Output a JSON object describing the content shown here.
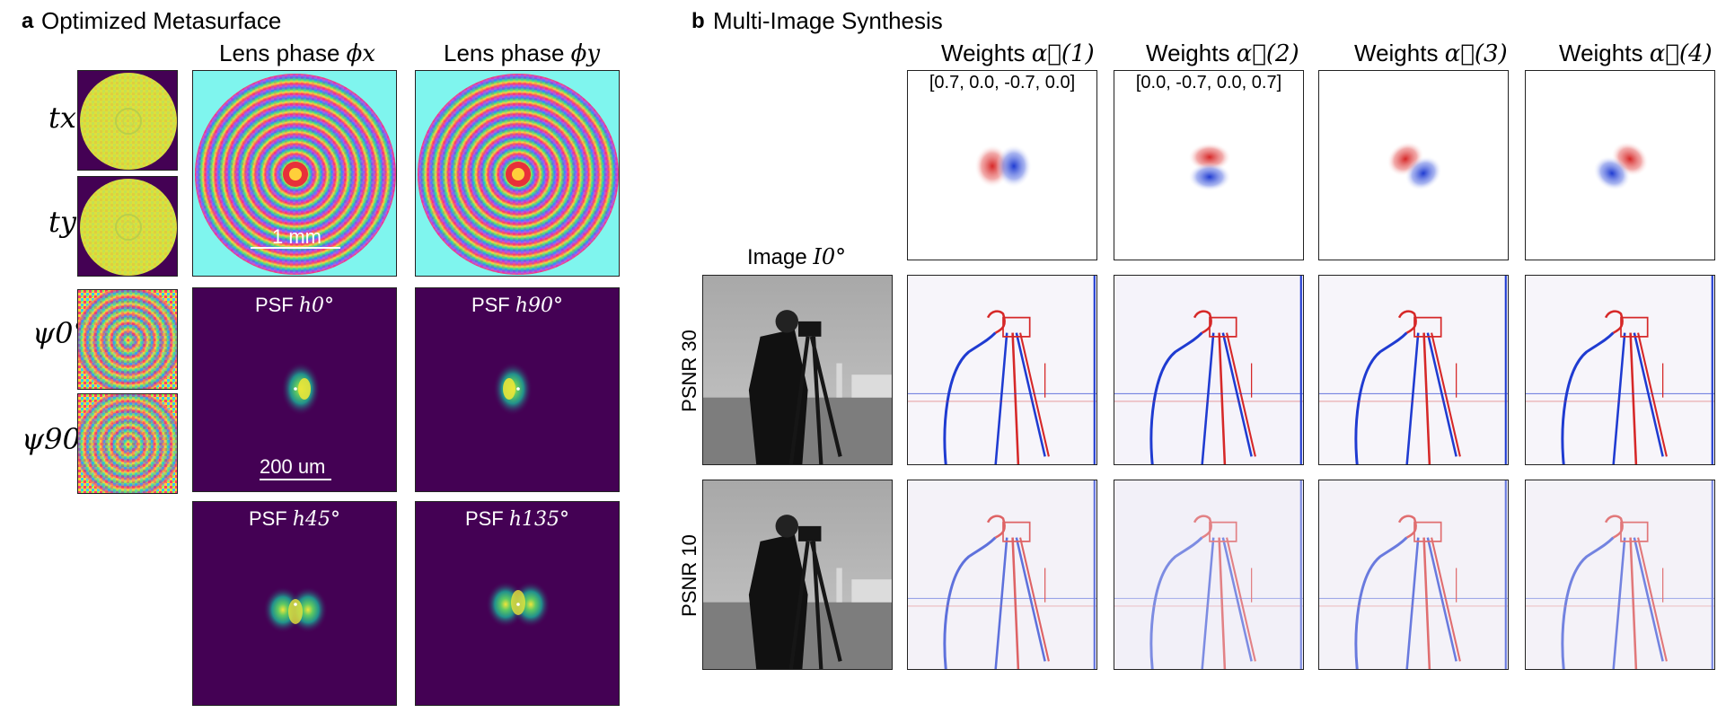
{
  "panel_a": {
    "letter": "a",
    "title": "Optimized Metasurface",
    "col_lens_x": "Lens phase ",
    "col_lens_x_sym": "ϕx",
    "col_lens_y": "Lens phase ",
    "col_lens_y_sym": "ϕy",
    "row_tx": "tx",
    "row_ty": "ty",
    "row_psi0": "ψ0°",
    "row_psi90": "ψ90°",
    "scale_1mm": "1 mm",
    "scale_200um": "200 um",
    "psf_0": "h0°",
    "psf_90": "h90°",
    "psf_45": "h45°",
    "psf_135": "h135°",
    "psf_prefix": "PSF "
  },
  "panel_b": {
    "letter": "b",
    "title": "Multi-Image Synthesis",
    "weights_prefix": "Weights ",
    "weights": [
      {
        "sym": "α⃗(1)",
        "values": "[0.7, 0.0, -0.7, 0.0]"
      },
      {
        "sym": "α⃗(2)",
        "values": "[0.0, -0.7, 0.0, 0.7]"
      },
      {
        "sym": "α⃗(3)",
        "values": ""
      },
      {
        "sym": "α⃗(4)",
        "values": ""
      }
    ],
    "image_label_prefix": "Image ",
    "image_label_sym": "I0°",
    "row_psnr30": "PSNR 30",
    "row_psnr10": "PSNR 10"
  },
  "colors": {
    "cyan_bg": "#7ff5ee",
    "viridis_dark": "#440154",
    "viridis_yellow": "#dfe33a",
    "red": "#d62828",
    "blue": "#1f3bd1"
  }
}
